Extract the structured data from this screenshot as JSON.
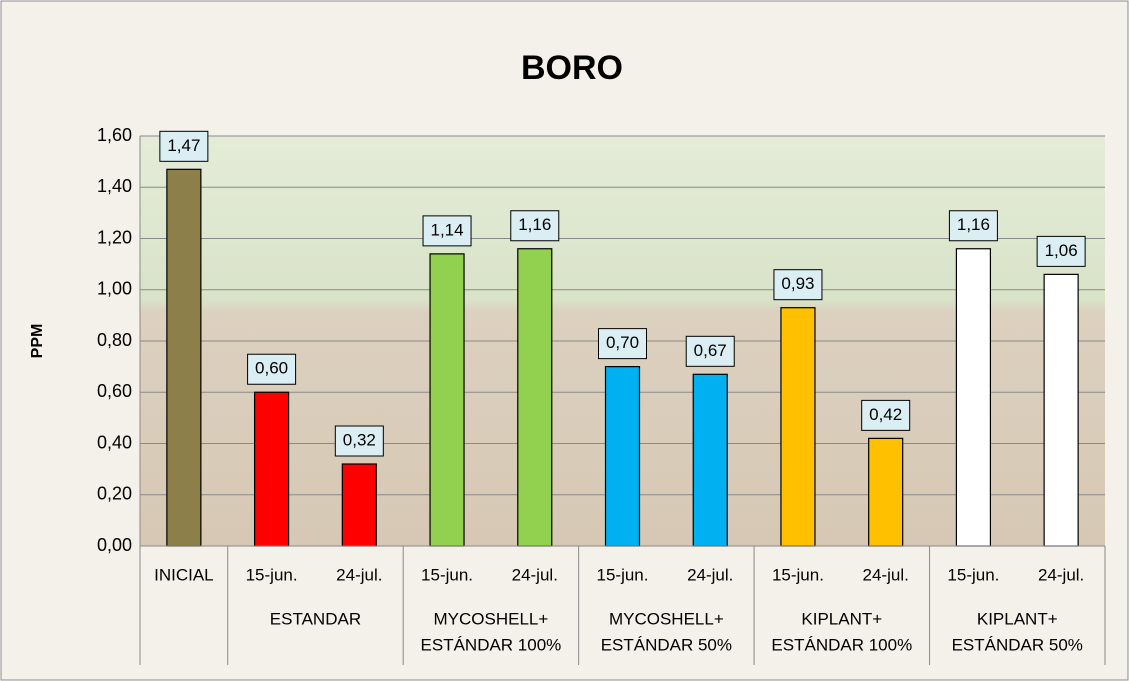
{
  "chart_data": {
    "type": "bar",
    "title": "BORO",
    "y_label": "PPM",
    "ylim": [
      0,
      1.6
    ],
    "yticks": [
      {
        "value": 0,
        "label": "0,00"
      },
      {
        "value": 0.2,
        "label": "0,20"
      },
      {
        "value": 0.4,
        "label": "0,40"
      },
      {
        "value": 0.6,
        "label": "0,60"
      },
      {
        "value": 0.8,
        "label": "0,80"
      },
      {
        "value": 1.0,
        "label": "1,00"
      },
      {
        "value": 1.2,
        "label": "1,20"
      },
      {
        "value": 1.4,
        "label": "1,40"
      },
      {
        "value": 1.6,
        "label": "1,60"
      }
    ],
    "grid": true,
    "groups": [
      {
        "label": null,
        "color": "#8c7f4a",
        "categories": [
          "INICIAL"
        ],
        "values": [
          1.47
        ],
        "value_labels": [
          "1,47"
        ]
      },
      {
        "label": [
          "ESTANDAR"
        ],
        "color": "#ff0000",
        "categories": [
          "15-jun.",
          "24-jul."
        ],
        "values": [
          0.6,
          0.32
        ],
        "value_labels": [
          "0,60",
          "0,32"
        ]
      },
      {
        "label": [
          "MYCOSHELL+",
          "ESTÁNDAR 100%"
        ],
        "color": "#92d050",
        "categories": [
          "15-jun.",
          "24-jul."
        ],
        "values": [
          1.14,
          1.16
        ],
        "value_labels": [
          "1,14",
          "1,16"
        ]
      },
      {
        "label": [
          "MYCOSHELL+",
          "ESTÁNDAR 50%"
        ],
        "color": "#00b0f0",
        "categories": [
          "15-jun.",
          "24-jul."
        ],
        "values": [
          0.7,
          0.67
        ],
        "value_labels": [
          "0,70",
          "0,67"
        ]
      },
      {
        "label": [
          "KIPLANT+",
          "ESTÁNDAR 100%"
        ],
        "color": "#ffc000",
        "categories": [
          "15-jun.",
          "24-jul."
        ],
        "values": [
          0.93,
          0.42
        ],
        "value_labels": [
          "0,93",
          "0,42"
        ]
      },
      {
        "label": [
          "KIPLANT+",
          "ESTÁNDAR 50%"
        ],
        "color": "#ffffff",
        "categories": [
          "15-jun.",
          "24-jul."
        ],
        "values": [
          1.16,
          1.06
        ],
        "value_labels": [
          "1,16",
          "1,06"
        ]
      }
    ]
  }
}
